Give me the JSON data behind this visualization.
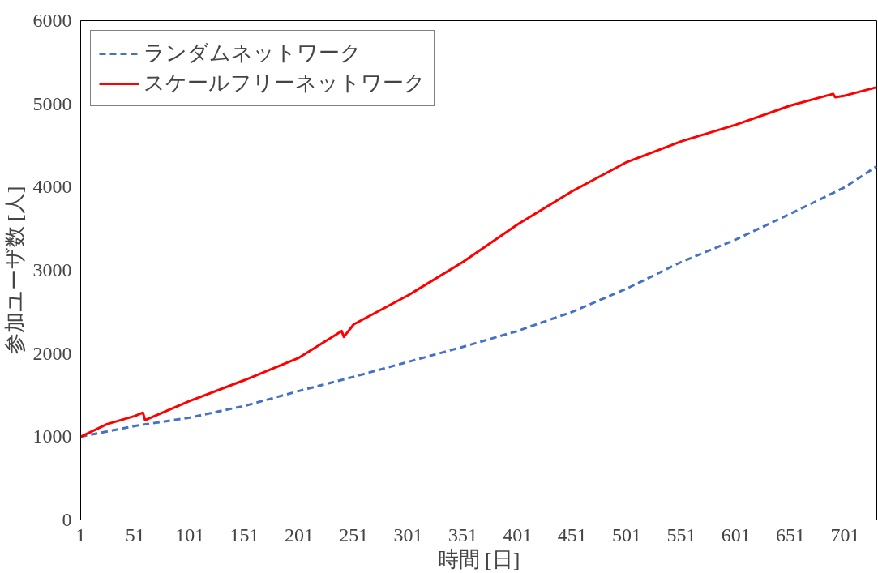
{
  "chart_data": {
    "type": "line",
    "xlabel": "時間 [日]",
    "ylabel": "参加ユーザ数 [人]",
    "xlim": [
      1,
      730
    ],
    "xticks": [
      1,
      51,
      101,
      151,
      201,
      251,
      301,
      351,
      401,
      451,
      501,
      551,
      601,
      651,
      701
    ],
    "ylim": [
      0,
      6000
    ],
    "yticks": [
      0,
      1000,
      2000,
      3000,
      4000,
      5000,
      6000
    ],
    "grid": false,
    "legend": "top left",
    "series": [
      {
        "name": "ランダムネットワーク",
        "color": "#4472c4",
        "line_style": "dashed",
        "x": [
          1,
          51,
          101,
          151,
          201,
          251,
          301,
          351,
          401,
          451,
          501,
          551,
          601,
          651,
          701,
          730
        ],
        "values": [
          1000,
          1130,
          1230,
          1370,
          1550,
          1720,
          1900,
          2080,
          2270,
          2500,
          2780,
          3100,
          3370,
          3680,
          4000,
          4250
        ]
      },
      {
        "name": "スケールフリーネットワーク",
        "color": "#ff0000",
        "line_style": "solid",
        "x": [
          1,
          25,
          51,
          58,
          60,
          101,
          151,
          201,
          240,
          242,
          251,
          301,
          351,
          401,
          451,
          501,
          551,
          601,
          651,
          690,
          692,
          701,
          730
        ],
        "values": [
          1000,
          1150,
          1250,
          1290,
          1200,
          1430,
          1680,
          1950,
          2270,
          2200,
          2350,
          2700,
          3100,
          3550,
          3950,
          4300,
          4550,
          4750,
          4980,
          5120,
          5080,
          5100,
          5200
        ]
      }
    ]
  }
}
